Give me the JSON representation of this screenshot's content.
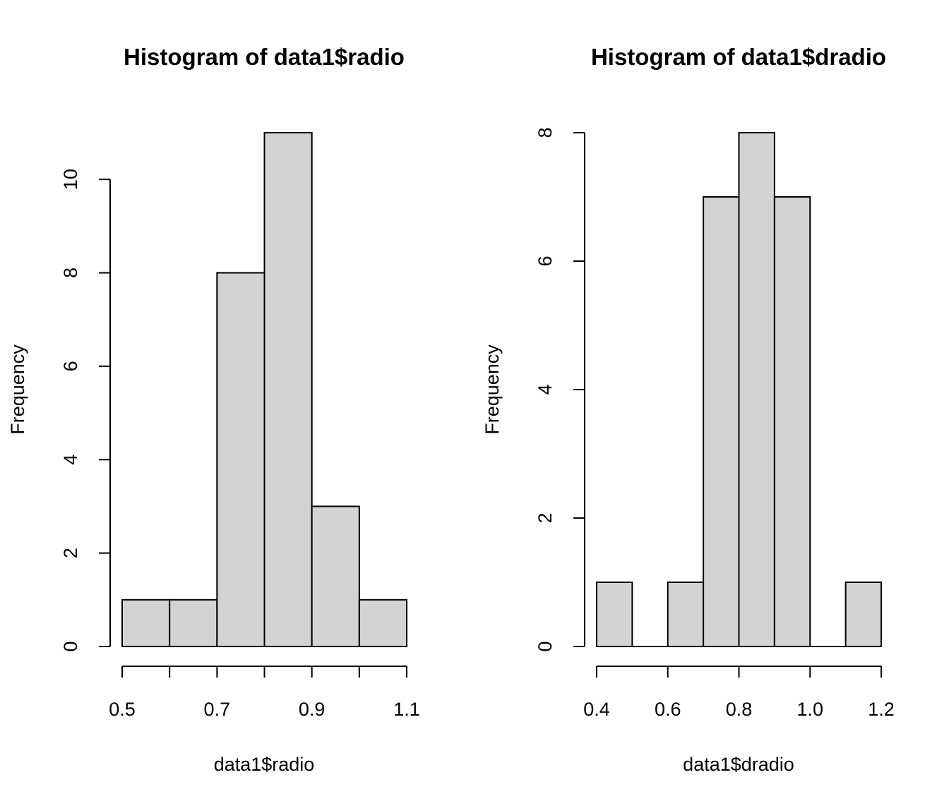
{
  "colors": {
    "bar_fill": "#d3d3d3",
    "bar_stroke": "#000000",
    "background": "#ffffff"
  },
  "chart_data": [
    {
      "type": "bar",
      "title": "Histogram of data1$radio",
      "xlabel": "data1$radio",
      "ylabel": "Frequency",
      "bins": [
        [
          0.5,
          0.6
        ],
        [
          0.6,
          0.7
        ],
        [
          0.7,
          0.8
        ],
        [
          0.8,
          0.9
        ],
        [
          0.9,
          1.0
        ],
        [
          1.0,
          1.1
        ]
      ],
      "values": [
        1,
        1,
        8,
        11,
        3,
        1
      ],
      "xlim": [
        0.5,
        1.1
      ],
      "ylim": [
        0,
        11
      ],
      "x_ticks": [
        0.5,
        0.6,
        0.7,
        0.8,
        0.9,
        1.0,
        1.1
      ],
      "x_tick_labels": [
        "0.5",
        "",
        "0.7",
        "",
        "0.9",
        "",
        "1.1"
      ],
      "y_ticks": [
        0,
        2,
        4,
        6,
        8,
        10
      ],
      "y_tick_labels": [
        "0",
        "2",
        "4",
        "6",
        "8",
        "10"
      ],
      "grid": false
    },
    {
      "type": "bar",
      "title": "Histogram of data1$dradio",
      "xlabel": "data1$dradio",
      "ylabel": "Frequency",
      "bins": [
        [
          0.4,
          0.5
        ],
        [
          0.5,
          0.6
        ],
        [
          0.6,
          0.7
        ],
        [
          0.7,
          0.8
        ],
        [
          0.8,
          0.9
        ],
        [
          0.9,
          1.0
        ],
        [
          1.0,
          1.1
        ],
        [
          1.1,
          1.2
        ]
      ],
      "values": [
        1,
        0,
        1,
        7,
        8,
        7,
        0,
        1
      ],
      "xlim": [
        0.4,
        1.2
      ],
      "ylim": [
        0,
        8
      ],
      "x_ticks": [
        0.4,
        0.6,
        0.8,
        1.0,
        1.2
      ],
      "x_tick_labels": [
        "0.4",
        "0.6",
        "0.8",
        "1.0",
        "1.2"
      ],
      "y_ticks": [
        0,
        2,
        4,
        6,
        8
      ],
      "y_tick_labels": [
        "0",
        "2",
        "4",
        "6",
        "8"
      ],
      "grid": false
    }
  ]
}
